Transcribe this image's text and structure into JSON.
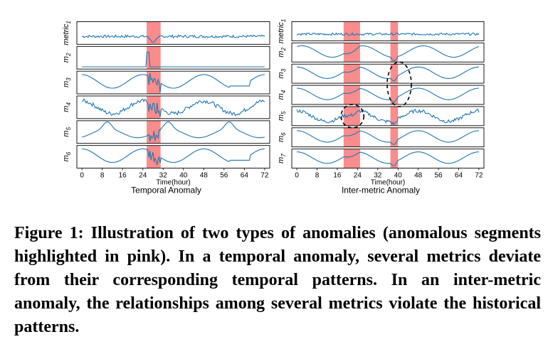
{
  "chart_data": [
    {
      "type": "line",
      "title": "Temporal Anomaly",
      "xlabel": "Time(hour)",
      "x_ticks": [
        0,
        8,
        16,
        24,
        32,
        40,
        48,
        56,
        64,
        72
      ],
      "xlim": [
        -2,
        74
      ],
      "highlight_ranges": [
        [
          25.5,
          31
        ]
      ],
      "highlight_color": "#fa8080",
      "line_color": "#1f77b4",
      "series": [
        {
          "name": "metric1",
          "label_main": "metric",
          "label_sub": "1",
          "pattern": "flat-noisy",
          "anomaly": "dip"
        },
        {
          "name": "m2",
          "label_main": "m",
          "label_sub": "2",
          "pattern": "flat-low",
          "anomaly": "spike"
        },
        {
          "name": "m3",
          "label_main": "m",
          "label_sub": "3",
          "pattern": "daily",
          "anomaly": "jagged"
        },
        {
          "name": "m4",
          "label_main": "m",
          "label_sub": "4",
          "pattern": "daily-noisy",
          "anomaly": "jagged"
        },
        {
          "name": "m5",
          "label_main": "m",
          "label_sub": "5",
          "pattern": "daily-peak",
          "anomaly": "jagged"
        },
        {
          "name": "m6",
          "label_main": "m",
          "label_sub": "6",
          "pattern": "daily",
          "anomaly": "jagged"
        }
      ]
    },
    {
      "type": "line",
      "title": "Inter-metric Anomaly",
      "xlabel": "Time(hour)",
      "x_ticks": [
        0,
        8,
        16,
        24,
        32,
        40,
        48,
        56,
        64,
        72
      ],
      "xlim": [
        -2,
        74
      ],
      "highlight_ranges": [
        [
          18.5,
          25
        ],
        [
          37,
          40
        ]
      ],
      "highlight_color": "#fa8080",
      "line_color": "#1f77b4",
      "circled_rows": [
        3,
        5
      ],
      "series": [
        {
          "name": "metric1",
          "label_main": "metric",
          "label_sub": "1",
          "pattern": "flat-noisy",
          "anomaly": "none"
        },
        {
          "name": "m2",
          "label_main": "m",
          "label_sub": "2",
          "pattern": "daily-inv",
          "anomaly": "dip"
        },
        {
          "name": "m3",
          "label_main": "m",
          "label_sub": "3",
          "pattern": "daily",
          "anomaly": "dip"
        },
        {
          "name": "m4",
          "label_main": "m",
          "label_sub": "4",
          "pattern": "daily",
          "anomaly": "dip"
        },
        {
          "name": "m5",
          "label_main": "m",
          "label_sub": "5",
          "pattern": "daily-noisy",
          "anomaly": "dip"
        },
        {
          "name": "m6",
          "label_main": "m",
          "label_sub": "6",
          "pattern": "daily",
          "anomaly": "dip"
        },
        {
          "name": "m7",
          "label_main": "m",
          "label_sub": "7",
          "pattern": "daily",
          "anomaly": "dip"
        }
      ]
    }
  ],
  "caption": "Figure 1: Illustration of two types of anomalies (anomalous segments highlighted in pink). In a temporal anomaly, several metrics deviate from their corresponding temporal patterns. In an inter-metric anomaly, the relationships among several metrics violate the historical patterns."
}
